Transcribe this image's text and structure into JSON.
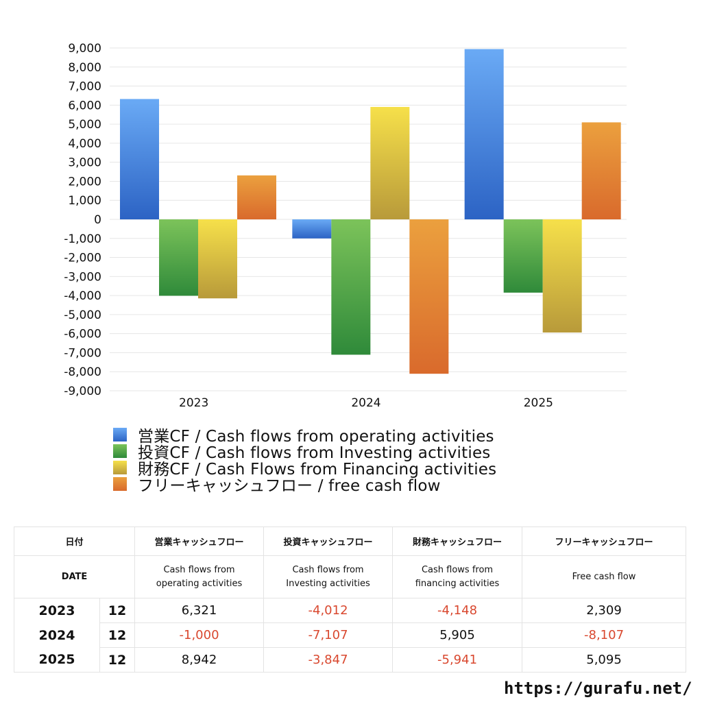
{
  "chart_data": {
    "type": "bar",
    "categories": [
      "2023",
      "2024",
      "2025"
    ],
    "series": [
      {
        "name": "営業CF / Cash flows from operating activities",
        "values": [
          6321,
          -1000,
          8942
        ]
      },
      {
        "name": "投資CF / Cash flows from Investing activities",
        "values": [
          -4012,
          -7107,
          -3847
        ]
      },
      {
        "name": "財務CF / Cash Flows from Financing activities",
        "values": [
          -4148,
          5905,
          -5941
        ]
      },
      {
        "name": "フリーキャッシュフロー / free cash flow",
        "values": [
          2309,
          -8107,
          5095
        ]
      }
    ],
    "ylim": [
      -9000,
      9000
    ],
    "yticks": [
      "9,000",
      "8,000",
      "7,000",
      "6,000",
      "5,000",
      "4,000",
      "3,000",
      "2,000",
      "1,000",
      "0",
      "-1,000",
      "-2,000",
      "-3,000",
      "-4,000",
      "-5,000",
      "-6,000",
      "-7,000",
      "-8,000",
      "-9,000"
    ],
    "grid": true,
    "legend_position": "bottom",
    "colors": {
      "operating": [
        "#6aaaf5",
        "#2c63c4"
      ],
      "investing": [
        "#7cc35a",
        "#2f8a3a"
      ],
      "financing": [
        "#f6e04a",
        "#b89a3a"
      ],
      "free": [
        "#eba03e",
        "#d96a2c"
      ]
    }
  },
  "table": {
    "header_jp": [
      "日付",
      "営業キャッシュフロー",
      "投資キャッシュフロー",
      "財務キャッシュフロー",
      "フリーキャッシュフロー"
    ],
    "header_date": "DATE",
    "header_en": [
      "Cash flows from\noperating activities",
      "Cash flows from\nInvesting activities",
      "Cash flows from\nfinancing activities",
      "Free cash flow"
    ],
    "rows": [
      {
        "year": "2023",
        "month": "12",
        "values": [
          "6,321",
          "-4,012",
          "-4,148",
          "2,309"
        ]
      },
      {
        "year": "2024",
        "month": "12",
        "values": [
          "-1,000",
          "-7,107",
          "5,905",
          "-8,107"
        ]
      },
      {
        "year": "2025",
        "month": "12",
        "values": [
          "8,942",
          "-3,847",
          "-5,941",
          "5,095"
        ]
      }
    ]
  },
  "site_url": "https://gurafu.net/"
}
